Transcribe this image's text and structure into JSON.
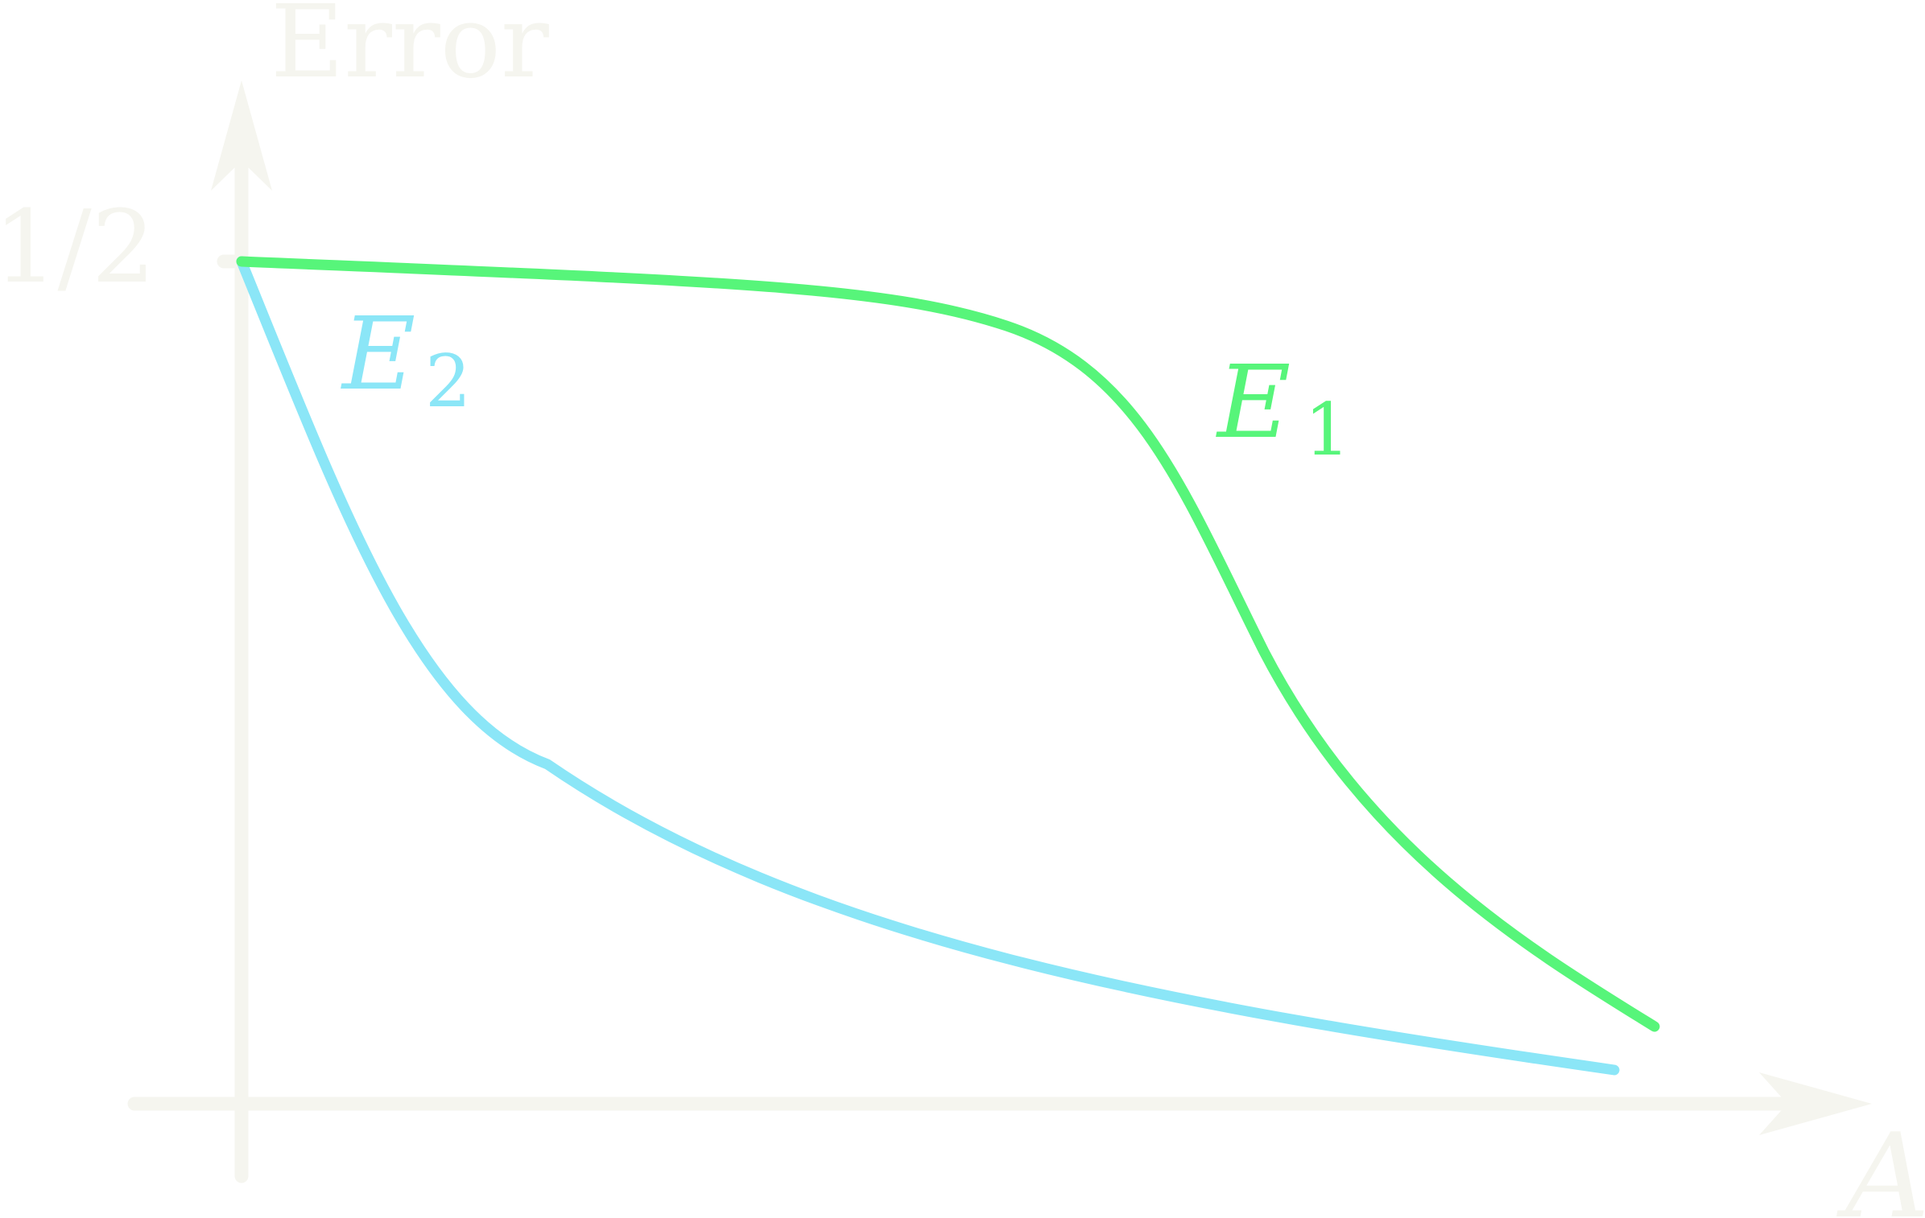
{
  "diagram": {
    "y_axis_label": "Error",
    "x_axis_label": "A",
    "y_tick_label": "1/2",
    "colors": {
      "axis": "#f5f5ef",
      "e1": "#57f57a",
      "e2": "#8be6f7"
    },
    "curves": [
      {
        "name": "E",
        "subscript": "1"
      },
      {
        "name": "E",
        "subscript": "2"
      }
    ]
  }
}
